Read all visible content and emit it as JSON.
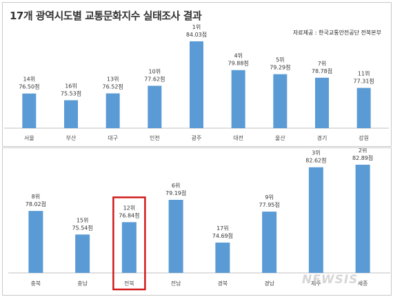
{
  "title": "17개 광역시도별 교통문화지수 실태조사 결과",
  "source": "자료제공 : 한국교통안전공단 전북본부",
  "watermark": "NEWSIS",
  "colors": {
    "bar": "#5b9bd5",
    "highlight": "#d11a1a",
    "axis": "#bfbfbf"
  },
  "chart_data": [
    {
      "type": "bar",
      "categories": [
        "서울",
        "부산",
        "대구",
        "인천",
        "광주",
        "대전",
        "울산",
        "경기",
        "강원"
      ],
      "values": [
        76.5,
        75.53,
        76.52,
        77.62,
        84.03,
        79.88,
        79.29,
        78.78,
        77.31
      ],
      "value_labels": [
        "76.50점",
        "75.53점",
        "76.52점",
        "77.62점",
        "84.03점",
        "79.88점",
        "79.29점",
        "78.78점",
        "77.31점"
      ],
      "ranks": [
        "14위",
        "16위",
        "13위",
        "10위",
        "1위",
        "4위",
        "5위",
        "7위",
        "11위"
      ],
      "highlight": null
    },
    {
      "type": "bar",
      "categories": [
        "충북",
        "충남",
        "전북",
        "전남",
        "경북",
        "경남",
        "제주",
        "세종"
      ],
      "values": [
        78.02,
        75.54,
        76.84,
        79.19,
        74.69,
        77.95,
        82.62,
        82.89
      ],
      "value_labels": [
        "78.02점",
        "75.54점",
        "76.84점",
        "79.19점",
        "74.69점",
        "77.95점",
        "82.62점",
        "82.89점"
      ],
      "ranks": [
        "8위",
        "15위",
        "12위",
        "6위",
        "17위",
        "9위",
        "3위",
        "2위"
      ],
      "highlight": "전북"
    }
  ]
}
